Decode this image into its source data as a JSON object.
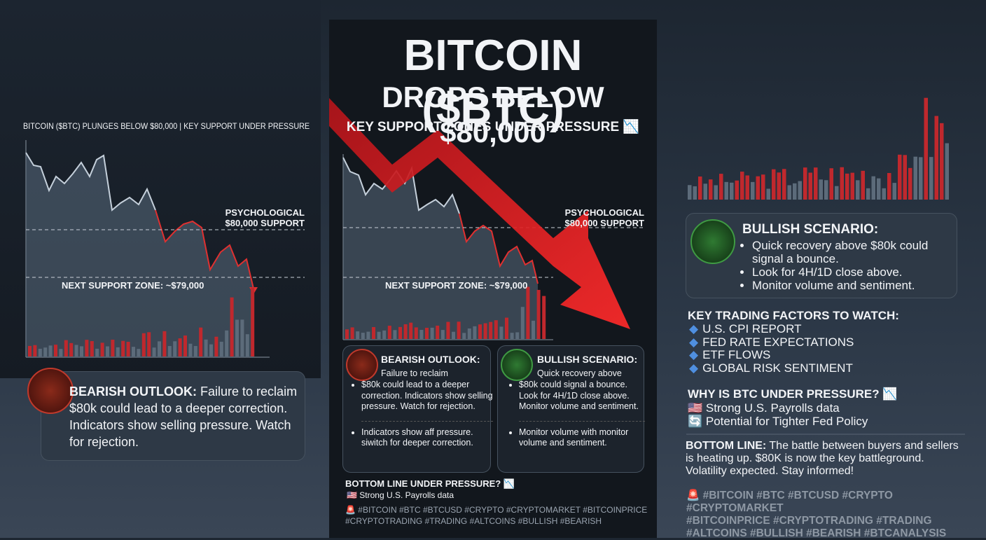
{
  "left": {
    "chart_title": "BITCOIN ($BTC) PLUNGES BELOW $80,000 | KEY SUPPORT UNDER PRESSURE",
    "psych_1": "PSYCHOLOGICAL",
    "psych_2": "$80,000 SUPPORT",
    "next_support": "NEXT SUPPORT ZONE: ~$79,000",
    "bearish": {
      "heading": "BEARISH OUTLOOK:",
      "text": "Failure to reclaim $80k could lead to a deeper correction. Indicators show selling pressure. Watch for rejection."
    }
  },
  "center": {
    "title_1": "BITCOIN ($BTC)",
    "title_2": "DROPS BELOW $80,000",
    "subtitle": "KEY SUPPORT ZONES UNDER PRESSURE 📉",
    "psych_1": "PSYCHOLOGICAL",
    "psych_2": "$80,000 SUPPORT",
    "next_support": "NEXT SUPPORT ZONE: ~$79,000",
    "bearish": {
      "heading": "BEARISH OUTLOOK:",
      "lead": "Failure to reclaim",
      "points": [
        "$80k could lead to a deeper correction. Indicators show selling pressure. Watch for rejection.",
        "Indicators show aff pressure. siwitch for deeper correction."
      ]
    },
    "bullish": {
      "heading": "BULLISH SCENARIO:",
      "lead": "Quick recovery above",
      "points": [
        "$80k could signal a bounce. Look for 4H/1D close above. Monitor volume and sentiment.",
        "Monitor volume with monitor volume and sentiment."
      ]
    },
    "bottom": {
      "heading": "BOTTOM LINE UNDER PRESSURE? 📉",
      "item": "🇺🇸 Strong U.S. Payrolls data"
    },
    "hashtags": [
      "🚨 #BITCOIN #BTC #BTCUSD #CRYPTO #CRYPTOMARKET #BITCOINPRICE",
      "#CRYPTOTRADING #TRADING #ALTCOINS #BULLISH #BEARISH"
    ]
  },
  "right": {
    "bullish": {
      "heading": "BULLISH SCENARIO:",
      "points": [
        "Quick recovery above $80k could signal a bounce.",
        "Look for 4H/1D close above.",
        "Monitor volume and sentiment."
      ]
    },
    "factors": {
      "heading": "KEY TRADING FACTORS TO WATCH:",
      "items": [
        "U.S. CPI REPORT",
        "FED RATE EXPECTATIONS",
        "ETF FLOWS",
        "GLOBAL RISK SENTIMENT"
      ]
    },
    "why": {
      "heading": "WHY IS BTC UNDER PRESSURE? 📉",
      "items": [
        "🇺🇸 Strong U.S. Payrolls data",
        "🔄 Potential for Tighter Fed Policy"
      ]
    },
    "bottom": {
      "heading": "BOTTOM LINE:",
      "text": "The battle between buyers and sellers is heating up. $80K is now the key battleground. Volatility expected. Stay informed!"
    },
    "hashtags": [
      "🚨 #BITCOIN #BTC #BTCUSD #CRYPTO #CRYPTOMARKET",
      "#BITCOINPRICE #CRYPTOTRADING #TRADING",
      "#ALTCOINS #BULLISH #BEARISH #BTCANALYSIS"
    ]
  }
}
